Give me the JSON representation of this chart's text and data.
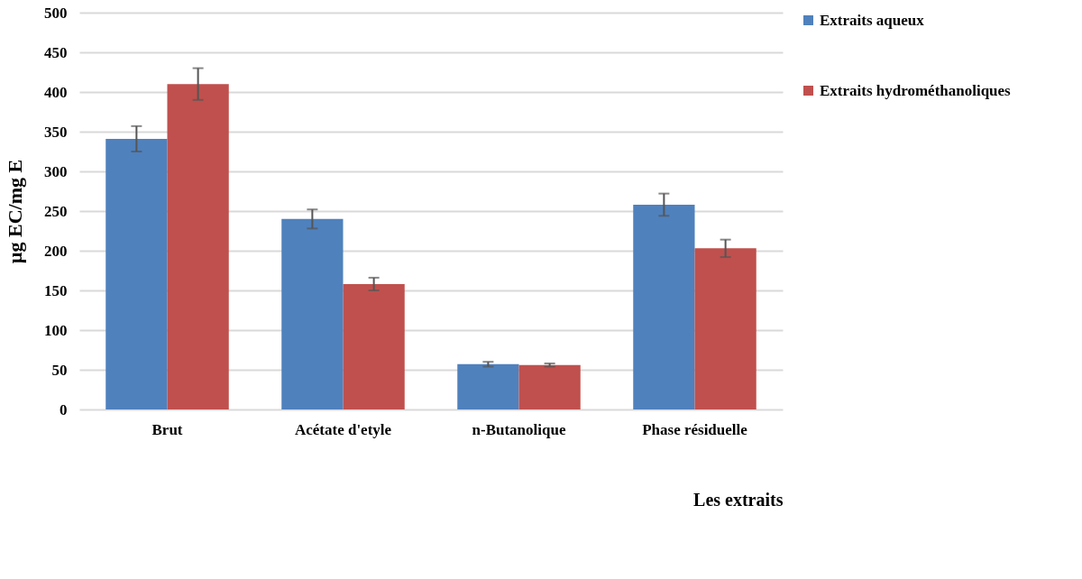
{
  "chart_data": {
    "type": "bar",
    "xlabel": "Les extraits",
    "ylabel": "µg EC/mg E",
    "categories": [
      "Brut",
      "Acétate d'etyle",
      "n-Butanolique",
      "Phase résiduelle"
    ],
    "series": [
      {
        "name": "Extraits aqueux",
        "color": "#4f81bd",
        "values": [
          341,
          240,
          57,
          258
        ],
        "errors": [
          16,
          12,
          3,
          14
        ]
      },
      {
        "name": "Extraits hydrométhanoliques",
        "color": "#c0504d",
        "values": [
          410,
          158,
          56,
          203
        ],
        "errors": [
          20,
          8,
          2,
          11
        ]
      }
    ],
    "ylim": [
      0,
      500
    ],
    "yticks": [
      0,
      50,
      100,
      150,
      200,
      250,
      300,
      350,
      400,
      450,
      500
    ],
    "grid": "y",
    "legend": "right"
  }
}
